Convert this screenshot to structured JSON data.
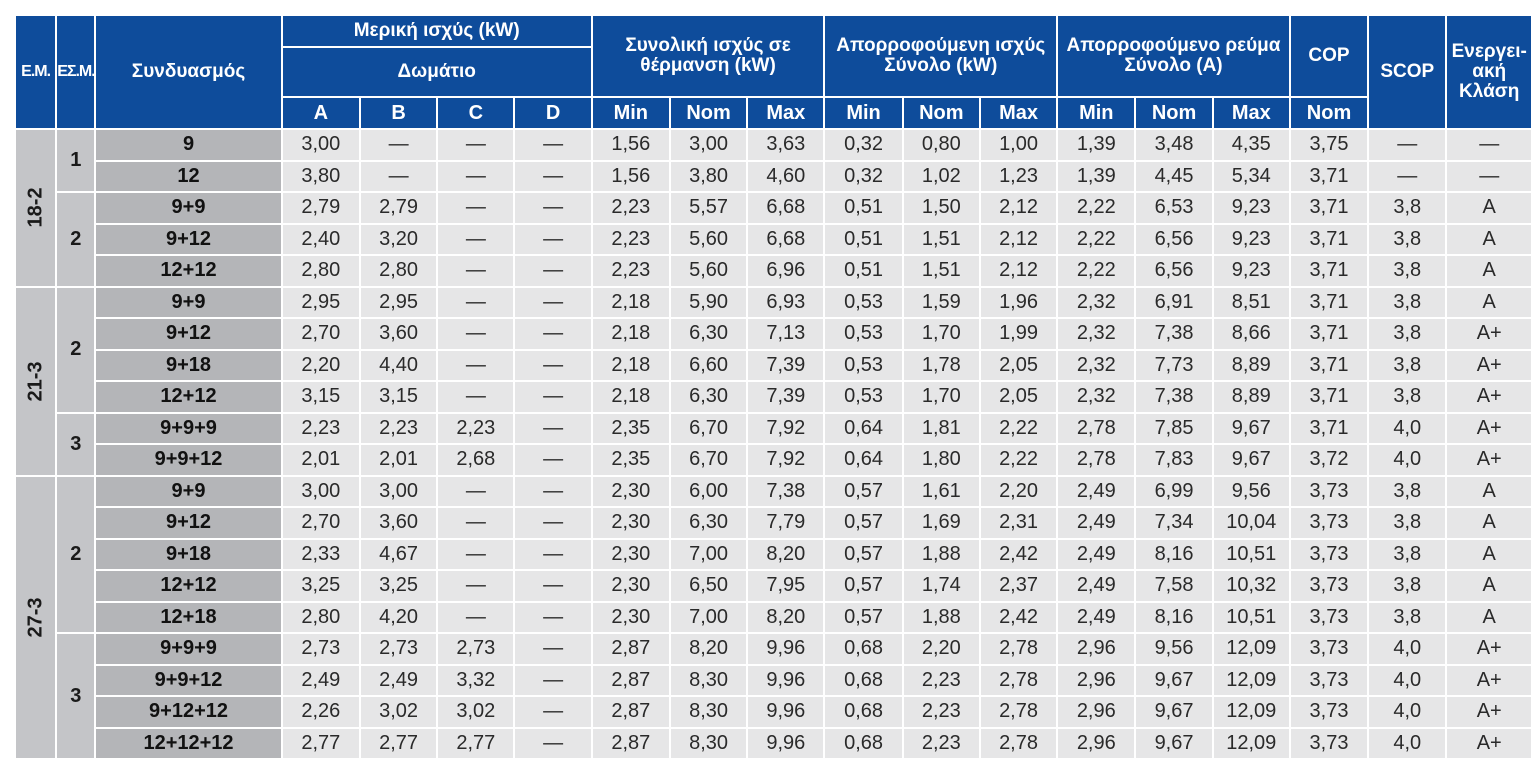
{
  "header": {
    "em": "Ε.Μ.",
    "esm": "ΕΣ.Μ.",
    "combo": "Συνδυασμός",
    "partial": "Μερική ισχύς (kW)",
    "room": "Δωμάτιο",
    "rooms": [
      "A",
      "B",
      "C",
      "D"
    ],
    "heating_total": "Συνολική ισχύς σε θέρμανση (kW)",
    "absorbed_power": "Απορροφούμενη ισχύς Σύνολο (kW)",
    "absorbed_current": "Απορροφούμενο ρεύμα Σύνολο (A)",
    "min": "Min",
    "nom": "Nom",
    "max": "Max",
    "cop": "COP",
    "cop_nom": "Nom",
    "scop": "SCOP",
    "energy_class": "Ενεργει-ακή Κλάση"
  },
  "groups": [
    {
      "em": "18-2",
      "subgroups": [
        {
          "esm": "1",
          "rows": [
            {
              "combo": "9",
              "a": "3,00",
              "b": "—",
              "c": "—",
              "d": "—",
              "hmin": "1,56",
              "hnom": "3,00",
              "hmax": "3,63",
              "pmin": "0,32",
              "pnom": "0,80",
              "pmax": "1,00",
              "imin": "1,39",
              "inom": "3,48",
              "imax": "4,35",
              "cop": "3,75",
              "scop": "—",
              "cls": "—"
            },
            {
              "combo": "12",
              "a": "3,80",
              "b": "—",
              "c": "—",
              "d": "—",
              "hmin": "1,56",
              "hnom": "3,80",
              "hmax": "4,60",
              "pmin": "0,32",
              "pnom": "1,02",
              "pmax": "1,23",
              "imin": "1,39",
              "inom": "4,45",
              "imax": "5,34",
              "cop": "3,71",
              "scop": "—",
              "cls": "—"
            }
          ]
        },
        {
          "esm": "2",
          "rows": [
            {
              "combo": "9+9",
              "a": "2,79",
              "b": "2,79",
              "c": "—",
              "d": "—",
              "hmin": "2,23",
              "hnom": "5,57",
              "hmax": "6,68",
              "pmin": "0,51",
              "pnom": "1,50",
              "pmax": "2,12",
              "imin": "2,22",
              "inom": "6,53",
              "imax": "9,23",
              "cop": "3,71",
              "scop": "3,8",
              "cls": "A"
            },
            {
              "combo": "9+12",
              "a": "2,40",
              "b": "3,20",
              "c": "—",
              "d": "—",
              "hmin": "2,23",
              "hnom": "5,60",
              "hmax": "6,68",
              "pmin": "0,51",
              "pnom": "1,51",
              "pmax": "2,12",
              "imin": "2,22",
              "inom": "6,56",
              "imax": "9,23",
              "cop": "3,71",
              "scop": "3,8",
              "cls": "A"
            },
            {
              "combo": "12+12",
              "a": "2,80",
              "b": "2,80",
              "c": "—",
              "d": "—",
              "hmin": "2,23",
              "hnom": "5,60",
              "hmax": "6,96",
              "pmin": "0,51",
              "pnom": "1,51",
              "pmax": "2,12",
              "imin": "2,22",
              "inom": "6,56",
              "imax": "9,23",
              "cop": "3,71",
              "scop": "3,8",
              "cls": "A"
            }
          ]
        }
      ]
    },
    {
      "em": "21-3",
      "subgroups": [
        {
          "esm": "2",
          "rows": [
            {
              "combo": "9+9",
              "a": "2,95",
              "b": "2,95",
              "c": "—",
              "d": "—",
              "hmin": "2,18",
              "hnom": "5,90",
              "hmax": "6,93",
              "pmin": "0,53",
              "pnom": "1,59",
              "pmax": "1,96",
              "imin": "2,32",
              "inom": "6,91",
              "imax": "8,51",
              "cop": "3,71",
              "scop": "3,8",
              "cls": "A"
            },
            {
              "combo": "9+12",
              "a": "2,70",
              "b": "3,60",
              "c": "—",
              "d": "—",
              "hmin": "2,18",
              "hnom": "6,30",
              "hmax": "7,13",
              "pmin": "0,53",
              "pnom": "1,70",
              "pmax": "1,99",
              "imin": "2,32",
              "inom": "7,38",
              "imax": "8,66",
              "cop": "3,71",
              "scop": "3,8",
              "cls": "A+"
            },
            {
              "combo": "9+18",
              "a": "2,20",
              "b": "4,40",
              "c": "—",
              "d": "—",
              "hmin": "2,18",
              "hnom": "6,60",
              "hmax": "7,39",
              "pmin": "0,53",
              "pnom": "1,78",
              "pmax": "2,05",
              "imin": "2,32",
              "inom": "7,73",
              "imax": "8,89",
              "cop": "3,71",
              "scop": "3,8",
              "cls": "A+"
            },
            {
              "combo": "12+12",
              "a": "3,15",
              "b": "3,15",
              "c": "—",
              "d": "—",
              "hmin": "2,18",
              "hnom": "6,30",
              "hmax": "7,39",
              "pmin": "0,53",
              "pnom": "1,70",
              "pmax": "2,05",
              "imin": "2,32",
              "inom": "7,38",
              "imax": "8,89",
              "cop": "3,71",
              "scop": "3,8",
              "cls": "A+"
            }
          ]
        },
        {
          "esm": "3",
          "rows": [
            {
              "combo": "9+9+9",
              "a": "2,23",
              "b": "2,23",
              "c": "2,23",
              "d": "—",
              "hmin": "2,35",
              "hnom": "6,70",
              "hmax": "7,92",
              "pmin": "0,64",
              "pnom": "1,81",
              "pmax": "2,22",
              "imin": "2,78",
              "inom": "7,85",
              "imax": "9,67",
              "cop": "3,71",
              "scop": "4,0",
              "cls": "A+"
            },
            {
              "combo": "9+9+12",
              "a": "2,01",
              "b": "2,01",
              "c": "2,68",
              "d": "—",
              "hmin": "2,35",
              "hnom": "6,70",
              "hmax": "7,92",
              "pmin": "0,64",
              "pnom": "1,80",
              "pmax": "2,22",
              "imin": "2,78",
              "inom": "7,83",
              "imax": "9,67",
              "cop": "3,72",
              "scop": "4,0",
              "cls": "A+"
            }
          ]
        }
      ]
    },
    {
      "em": "27-3",
      "subgroups": [
        {
          "esm": "2",
          "rows": [
            {
              "combo": "9+9",
              "a": "3,00",
              "b": "3,00",
              "c": "—",
              "d": "—",
              "hmin": "2,30",
              "hnom": "6,00",
              "hmax": "7,38",
              "pmin": "0,57",
              "pnom": "1,61",
              "pmax": "2,20",
              "imin": "2,49",
              "inom": "6,99",
              "imax": "9,56",
              "cop": "3,73",
              "scop": "3,8",
              "cls": "A"
            },
            {
              "combo": "9+12",
              "a": "2,70",
              "b": "3,60",
              "c": "—",
              "d": "—",
              "hmin": "2,30",
              "hnom": "6,30",
              "hmax": "7,79",
              "pmin": "0,57",
              "pnom": "1,69",
              "pmax": "2,31",
              "imin": "2,49",
              "inom": "7,34",
              "imax": "10,04",
              "cop": "3,73",
              "scop": "3,8",
              "cls": "A"
            },
            {
              "combo": "9+18",
              "a": "2,33",
              "b": "4,67",
              "c": "—",
              "d": "—",
              "hmin": "2,30",
              "hnom": "7,00",
              "hmax": "8,20",
              "pmin": "0,57",
              "pnom": "1,88",
              "pmax": "2,42",
              "imin": "2,49",
              "inom": "8,16",
              "imax": "10,51",
              "cop": "3,73",
              "scop": "3,8",
              "cls": "A"
            },
            {
              "combo": "12+12",
              "a": "3,25",
              "b": "3,25",
              "c": "—",
              "d": "—",
              "hmin": "2,30",
              "hnom": "6,50",
              "hmax": "7,95",
              "pmin": "0,57",
              "pnom": "1,74",
              "pmax": "2,37",
              "imin": "2,49",
              "inom": "7,58",
              "imax": "10,32",
              "cop": "3,73",
              "scop": "3,8",
              "cls": "A"
            },
            {
              "combo": "12+18",
              "a": "2,80",
              "b": "4,20",
              "c": "—",
              "d": "—",
              "hmin": "2,30",
              "hnom": "7,00",
              "hmax": "8,20",
              "pmin": "0,57",
              "pnom": "1,88",
              "pmax": "2,42",
              "imin": "2,49",
              "inom": "8,16",
              "imax": "10,51",
              "cop": "3,73",
              "scop": "3,8",
              "cls": "A"
            }
          ]
        },
        {
          "esm": "3",
          "rows": [
            {
              "combo": "9+9+9",
              "a": "2,73",
              "b": "2,73",
              "c": "2,73",
              "d": "—",
              "hmin": "2,87",
              "hnom": "8,20",
              "hmax": "9,96",
              "pmin": "0,68",
              "pnom": "2,20",
              "pmax": "2,78",
              "imin": "2,96",
              "inom": "9,56",
              "imax": "12,09",
              "cop": "3,73",
              "scop": "4,0",
              "cls": "A+"
            },
            {
              "combo": "9+9+12",
              "a": "2,49",
              "b": "2,49",
              "c": "3,32",
              "d": "—",
              "hmin": "2,87",
              "hnom": "8,30",
              "hmax": "9,96",
              "pmin": "0,68",
              "pnom": "2,23",
              "pmax": "2,78",
              "imin": "2,96",
              "inom": "9,67",
              "imax": "12,09",
              "cop": "3,73",
              "scop": "4,0",
              "cls": "A+"
            },
            {
              "combo": "9+12+12",
              "a": "2,26",
              "b": "3,02",
              "c": "3,02",
              "d": "—",
              "hmin": "2,87",
              "hnom": "8,30",
              "hmax": "9,96",
              "pmin": "0,68",
              "pnom": "2,23",
              "pmax": "2,78",
              "imin": "2,96",
              "inom": "9,67",
              "imax": "12,09",
              "cop": "3,73",
              "scop": "4,0",
              "cls": "A+"
            },
            {
              "combo": "12+12+12",
              "a": "2,77",
              "b": "2,77",
              "c": "2,77",
              "d": "—",
              "hmin": "2,87",
              "hnom": "8,30",
              "hmax": "9,96",
              "pmin": "0,68",
              "pnom": "2,23",
              "pmax": "2,78",
              "imin": "2,96",
              "inom": "9,67",
              "imax": "12,09",
              "cop": "3,73",
              "scop": "4,0",
              "cls": "A+"
            }
          ]
        }
      ]
    }
  ]
}
